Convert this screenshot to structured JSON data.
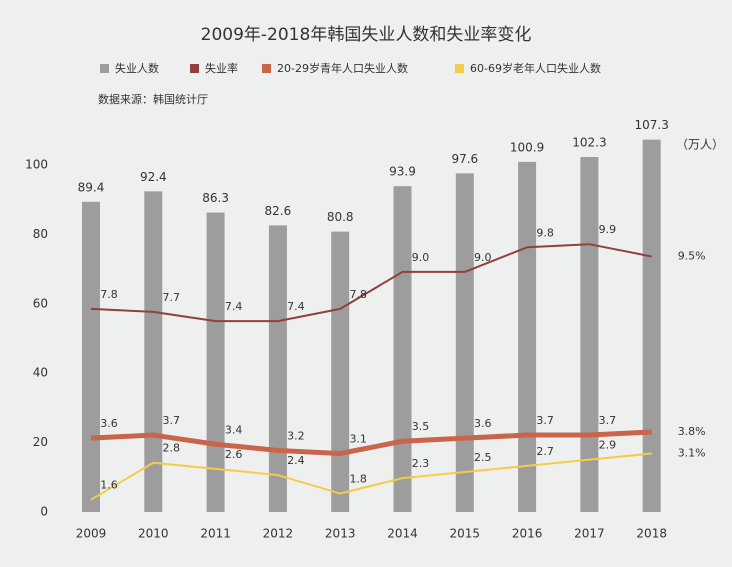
{
  "chart_data": {
    "type": "bar",
    "title": "2009年-2018年韩国失业人数和失业率变化",
    "source": "数据来源：韩国统计厅",
    "y_unit": "（万人）",
    "categories": [
      "2009",
      "2010",
      "2011",
      "2012",
      "2013",
      "2014",
      "2015",
      "2016",
      "2017",
      "2018"
    ],
    "ylim": [
      0,
      110
    ],
    "yticks": [
      0,
      20,
      40,
      60,
      80,
      100
    ],
    "y2lim": [
      1.2,
      13.6
    ],
    "series": [
      {
        "name": "失业人数",
        "type": "bar",
        "color": "#9d9d9d",
        "values": [
          89.4,
          92.4,
          86.3,
          82.6,
          80.8,
          93.9,
          97.6,
          100.9,
          102.3,
          107.3
        ]
      },
      {
        "name": "失业率",
        "type": "line",
        "axis": "y2",
        "color": "#93403d",
        "width": 2,
        "values": [
          7.8,
          7.7,
          7.4,
          7.4,
          7.8,
          9.0,
          9.0,
          9.8,
          9.9,
          9.5
        ],
        "value_labels": [
          "7.8",
          "7.7",
          "7.4",
          "7.4",
          "7.8",
          "9.0",
          "9.0",
          "9.8",
          "9.9",
          "9.5%"
        ]
      },
      {
        "name": "20-29岁青年人口失业人数",
        "type": "line",
        "axis": "y2",
        "color": "#c8654a",
        "width": 5,
        "values": [
          3.6,
          3.7,
          3.4,
          3.2,
          3.1,
          3.5,
          3.6,
          3.7,
          3.7,
          3.8
        ],
        "value_labels": [
          "3.6",
          "3.7",
          "3.4",
          "3.2",
          "3.1",
          "3.5",
          "3.6",
          "3.7",
          "3.7",
          "3.8%"
        ]
      },
      {
        "name": "60-69岁老年人口失业人数",
        "type": "line",
        "axis": "y2",
        "color": "#f2cd45",
        "width": 2,
        "values": [
          1.6,
          2.8,
          2.6,
          2.4,
          1.8,
          2.3,
          2.5,
          2.7,
          2.9,
          3.1
        ],
        "value_labels": [
          "1.6",
          "2.8",
          "2.6",
          "2.4",
          "1.8",
          "2.3",
          "2.5",
          "2.7",
          "2.9",
          "3.1%"
        ]
      }
    ]
  }
}
